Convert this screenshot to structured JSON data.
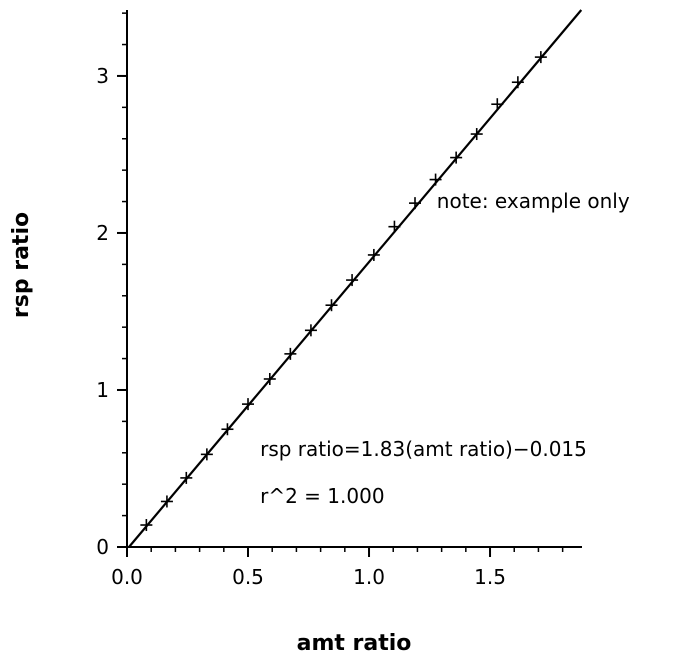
{
  "chart_data": {
    "type": "scatter",
    "title": "",
    "xlabel": "amt ratio",
    "ylabel": "rsp ratio",
    "xlim": [
      0,
      1.88
    ],
    "ylim": [
      0,
      3.42
    ],
    "x_ticks": [
      {
        "value": 0.0,
        "label": "0.0"
      },
      {
        "value": 0.5,
        "label": "0.5"
      },
      {
        "value": 1.0,
        "label": "1.0"
      },
      {
        "value": 1.5,
        "label": "1.5"
      }
    ],
    "y_ticks": [
      {
        "value": 0,
        "label": "0"
      },
      {
        "value": 1,
        "label": "1"
      },
      {
        "value": 2,
        "label": "2"
      },
      {
        "value": 3,
        "label": "3"
      }
    ],
    "x_minor_step": 0.1,
    "y_minor_step": 0.2,
    "grid": false,
    "legend": "none",
    "marker": "plus",
    "series": [
      {
        "x": [
          0.08,
          0.165,
          0.245,
          0.33,
          0.415,
          0.5,
          0.59,
          0.675,
          0.76,
          0.845,
          0.93,
          1.02,
          1.105,
          1.19,
          1.275,
          1.36,
          1.445,
          1.53,
          1.615,
          1.71
        ],
        "y": [
          0.14,
          0.29,
          0.44,
          0.59,
          0.75,
          0.91,
          1.07,
          1.23,
          1.38,
          1.54,
          1.7,
          1.86,
          2.04,
          2.19,
          2.34,
          2.48,
          2.63,
          2.82,
          2.96,
          3.12
        ]
      }
    ],
    "fit_line": {
      "slope": 1.83,
      "intercept": -0.015,
      "x_range": [
        0,
        1.88
      ]
    },
    "annotations": [
      {
        "text": "note: example only",
        "x": 1.28,
        "y": 2.16
      },
      {
        "text": "rsp ratio=1.83(amt ratio)−0.015",
        "x": 0.55,
        "y": 0.58
      },
      {
        "text": "r^2 = 1.000",
        "x": 0.55,
        "y": 0.28
      }
    ]
  },
  "colors": {
    "axis": "#000000",
    "marker": "#000000",
    "fit_line": "#000000"
  }
}
